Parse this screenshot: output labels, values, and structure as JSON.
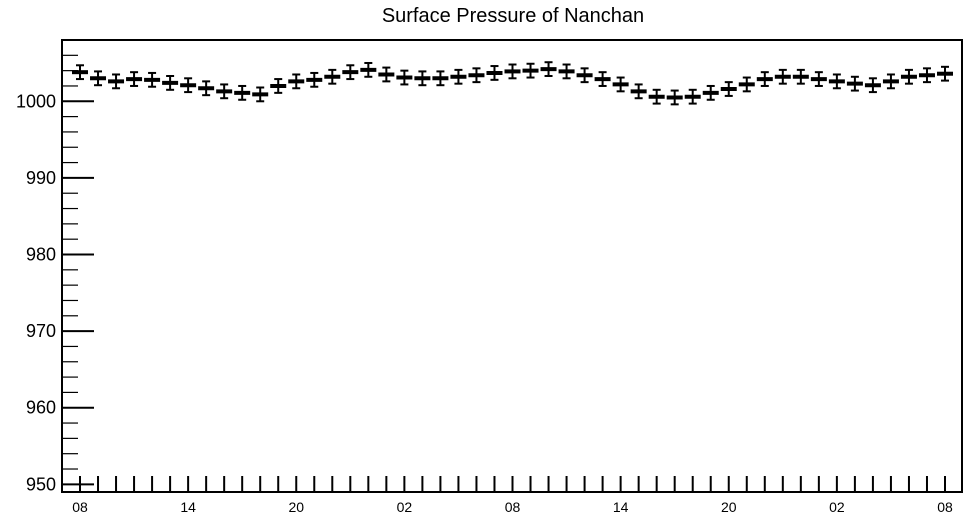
{
  "chart_data": {
    "type": "scatter",
    "title": "Surface Pressure of Nanchan",
    "xlabel": "",
    "ylabel": "",
    "ylim": [
      949,
      1008
    ],
    "y_ticks": [
      950,
      960,
      970,
      980,
      990,
      1000
    ],
    "x_tick_labels": [
      "08",
      "14",
      "20",
      "02",
      "08",
      "14",
      "20",
      "02",
      "08"
    ],
    "grid": false,
    "series": [
      {
        "marker": "errorbar",
        "error": 0.9,
        "values": [
          1003.8,
          1003.0,
          1002.6,
          1002.9,
          1002.8,
          1002.4,
          1002.1,
          1001.7,
          1001.3,
          1001.1,
          1000.9,
          1002.0,
          1002.6,
          1002.8,
          1003.2,
          1003.8,
          1004.1,
          1003.5,
          1003.1,
          1003.0,
          1003.0,
          1003.2,
          1003.4,
          1003.7,
          1003.9,
          1004.0,
          1004.2,
          1003.9,
          1003.4,
          1002.9,
          1002.2,
          1001.3,
          1000.6,
          1000.5,
          1000.6,
          1001.1,
          1001.6,
          1002.2,
          1002.9,
          1003.2,
          1003.2,
          1002.9,
          1002.6,
          1002.3,
          1002.1,
          1002.6,
          1003.2,
          1003.4,
          1003.6
        ]
      }
    ]
  }
}
